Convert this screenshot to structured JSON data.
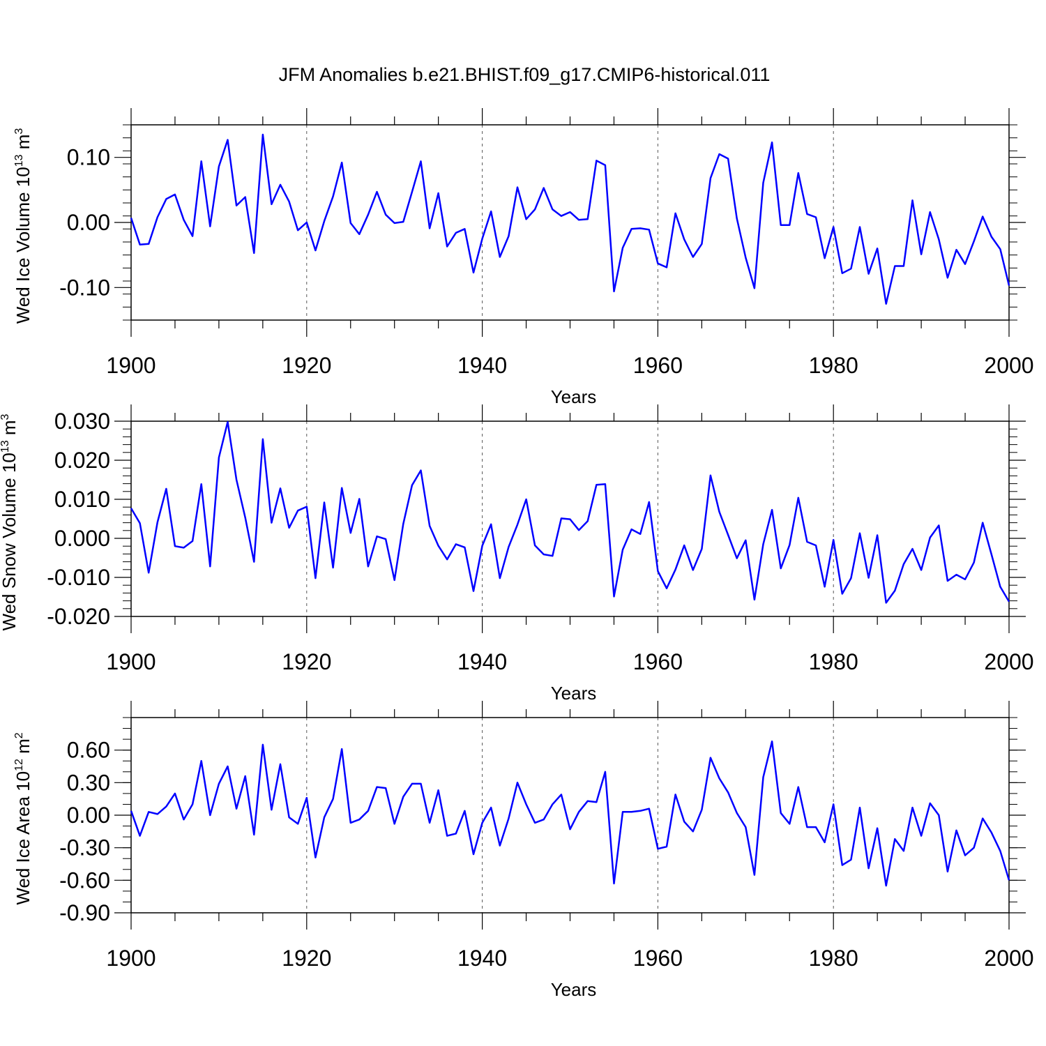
{
  "title": "JFM Anomalies b.e21.BHIST.f09_g17.CMIP6-historical.011",
  "line_color": "#0000ff",
  "chart_data": [
    {
      "type": "line",
      "ylabel_main": "Wed Ice Volume 10",
      "ylabel_sup": "13",
      "ylabel_unit": " m",
      "ylabel_unit_sup": "3",
      "xlabel": "Years",
      "xlim": [
        1900,
        2000
      ],
      "ylim": [
        -0.15,
        0.15
      ],
      "x_ticks": [
        "1900",
        "1920",
        "1940",
        "1960",
        "1980",
        "2000"
      ],
      "y_ticks": [
        {
          "value": 0.1,
          "label": "0.10"
        },
        {
          "value": 0.0,
          "label": "0.00"
        },
        {
          "value": -0.1,
          "label": "-0.10"
        }
      ],
      "y_minor_step": 0.02,
      "x_start": 1900,
      "values": [
        0.007,
        -0.034,
        -0.033,
        0.008,
        0.036,
        0.043,
        0.004,
        -0.021,
        0.094,
        -0.006,
        0.086,
        0.127,
        0.026,
        0.039,
        -0.047,
        0.135,
        0.028,
        0.058,
        0.032,
        -0.012,
        0.0,
        -0.043,
        0.002,
        0.04,
        0.092,
        -0.001,
        -0.018,
        0.012,
        0.047,
        0.012,
        -0.001,
        0.001,
        0.047,
        0.094,
        -0.009,
        0.045,
        -0.037,
        -0.016,
        -0.01,
        -0.077,
        -0.025,
        0.017,
        -0.053,
        -0.021,
        0.054,
        0.005,
        0.02,
        0.053,
        0.02,
        0.01,
        0.016,
        0.004,
        0.005,
        0.095,
        0.088,
        -0.106,
        -0.039,
        -0.01,
        -0.009,
        -0.011,
        -0.063,
        -0.069,
        0.014,
        -0.026,
        -0.053,
        -0.033,
        0.068,
        0.105,
        0.098,
        0.006,
        -0.054,
        -0.101,
        0.061,
        0.123,
        -0.004,
        -0.004,
        0.076,
        0.013,
        0.008,
        -0.055,
        -0.007,
        -0.078,
        -0.071,
        -0.007,
        -0.079,
        -0.04,
        -0.125,
        -0.067,
        -0.067,
        0.034,
        -0.049,
        0.016,
        -0.026,
        -0.085,
        -0.042,
        -0.064,
        -0.029,
        0.009,
        -0.022,
        -0.041,
        -0.097
      ]
    },
    {
      "type": "line",
      "ylabel_main": "Wed Snow Volume 10",
      "ylabel_sup": "13",
      "ylabel_unit": " m",
      "ylabel_unit_sup": "3",
      "xlabel": "Years",
      "xlim": [
        1900,
        2000
      ],
      "ylim": [
        -0.02,
        0.03
      ],
      "x_ticks": [
        "1900",
        "1920",
        "1940",
        "1960",
        "1980",
        "2000"
      ],
      "y_ticks": [
        {
          "value": 0.03,
          "label": "0.030"
        },
        {
          "value": 0.02,
          "label": "0.020"
        },
        {
          "value": 0.01,
          "label": "0.010"
        },
        {
          "value": 0.0,
          "label": "0.000"
        },
        {
          "value": -0.01,
          "label": "-0.010"
        },
        {
          "value": -0.02,
          "label": "-0.020"
        }
      ],
      "y_minor_step": 0.002,
      "x_start": 1900,
      "values": [
        0.0077,
        0.0039,
        -0.0088,
        0.0041,
        0.0127,
        -0.002,
        -0.0024,
        -0.0007,
        0.0139,
        -0.0072,
        0.0207,
        0.0298,
        0.015,
        0.0053,
        -0.006,
        0.0254,
        0.004,
        0.0128,
        0.0027,
        0.0071,
        0.0081,
        -0.0102,
        0.0092,
        -0.0075,
        0.0129,
        0.0014,
        0.0101,
        -0.0072,
        0.0005,
        -0.0002,
        -0.0107,
        0.0037,
        0.0136,
        0.0174,
        0.0032,
        -0.0019,
        -0.0054,
        -0.0015,
        -0.0023,
        -0.0135,
        -0.0019,
        0.0036,
        -0.0102,
        -0.0022,
        0.0035,
        0.01,
        -0.0018,
        -0.0041,
        -0.0045,
        0.0051,
        0.0049,
        0.0021,
        0.0044,
        0.0137,
        0.0139,
        -0.0149,
        -0.0029,
        0.0023,
        0.0011,
        0.0093,
        -0.0084,
        -0.0128,
        -0.008,
        -0.0018,
        -0.0081,
        -0.0027,
        0.0161,
        0.0068,
        0.0009,
        -0.0051,
        -0.0005,
        -0.0157,
        -0.0015,
        0.0073,
        -0.0077,
        -0.0017,
        0.0104,
        -0.0009,
        -0.0018,
        -0.0124,
        -0.0004,
        -0.0142,
        -0.0102,
        0.0013,
        -0.0101,
        0.0008,
        -0.0165,
        -0.0134,
        -0.0066,
        -0.0027,
        -0.0081,
        0.0002,
        0.0033,
        -0.0109,
        -0.0093,
        -0.0105,
        -0.0062,
        0.004,
        -0.0041,
        -0.0124,
        -0.0162
      ]
    },
    {
      "type": "line",
      "ylabel_main": "Wed Ice Area 10",
      "ylabel_sup": "12",
      "ylabel_unit": " m",
      "ylabel_unit_sup": "2",
      "xlabel": "Years",
      "xlim": [
        1900,
        2000
      ],
      "ylim": [
        -0.9,
        0.9
      ],
      "x_ticks": [
        "1900",
        "1920",
        "1940",
        "1960",
        "1980",
        "2000"
      ],
      "y_ticks": [
        {
          "value": 0.6,
          "label": "0.60"
        },
        {
          "value": 0.3,
          "label": "0.30"
        },
        {
          "value": 0.0,
          "label": "0.00"
        },
        {
          "value": -0.3,
          "label": "-0.30"
        },
        {
          "value": -0.6,
          "label": "-0.60"
        },
        {
          "value": -0.9,
          "label": "-0.90"
        }
      ],
      "y_minor_step": 0.1,
      "x_start": 1900,
      "values": [
        0.04,
        -0.19,
        0.03,
        0.01,
        0.08,
        0.2,
        -0.04,
        0.1,
        0.5,
        0.0,
        0.29,
        0.45,
        0.06,
        0.36,
        -0.18,
        0.65,
        0.05,
        0.47,
        -0.02,
        -0.08,
        0.16,
        -0.39,
        -0.02,
        0.15,
        0.61,
        -0.07,
        -0.04,
        0.04,
        0.26,
        0.25,
        -0.08,
        0.17,
        0.29,
        0.29,
        -0.07,
        0.23,
        -0.19,
        -0.17,
        0.04,
        -0.36,
        -0.07,
        0.07,
        -0.28,
        -0.03,
        0.3,
        0.1,
        -0.07,
        -0.04,
        0.1,
        0.19,
        -0.13,
        0.03,
        0.13,
        0.12,
        0.4,
        -0.63,
        0.03,
        0.03,
        0.04,
        0.06,
        -0.31,
        -0.29,
        0.19,
        -0.06,
        -0.15,
        0.05,
        0.53,
        0.34,
        0.21,
        0.02,
        -0.11,
        -0.55,
        0.35,
        0.68,
        0.02,
        -0.08,
        0.26,
        -0.11,
        -0.11,
        -0.25,
        0.1,
        -0.46,
        -0.41,
        0.07,
        -0.49,
        -0.12,
        -0.65,
        -0.22,
        -0.33,
        0.07,
        -0.19,
        0.11,
        0.0,
        -0.52,
        -0.14,
        -0.37,
        -0.3,
        -0.03,
        -0.16,
        -0.33,
        -0.6
      ]
    }
  ]
}
